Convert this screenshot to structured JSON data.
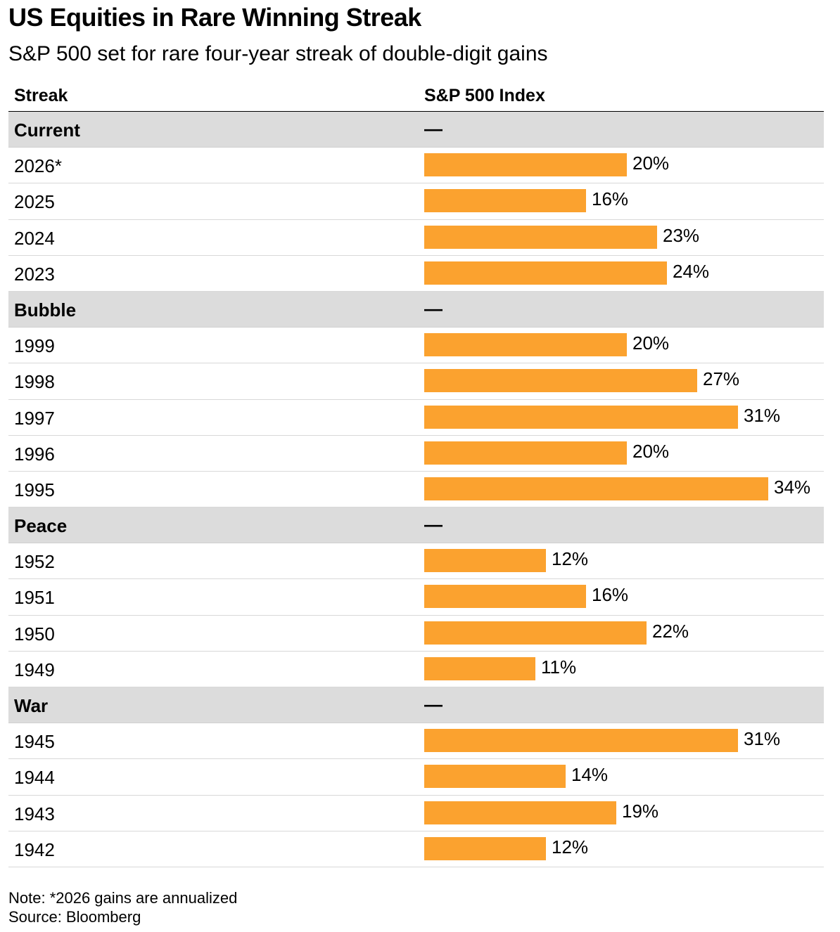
{
  "title": "US Equities in Rare Winning Streak",
  "subtitle": "S&P 500 set for rare four-year streak of double-digit gains",
  "columns": {
    "streak": "Streak",
    "index": "S&P 500 Index"
  },
  "note": "Note: *2026 gains are annualized",
  "source": "Source: Bloomberg",
  "colors": {
    "bar": "#fba22f",
    "group_bg": "#dcdcdc"
  },
  "chart_data": {
    "type": "bar",
    "orientation": "horizontal",
    "xlim": [
      0,
      34
    ],
    "groups": [
      {
        "name": "Current",
        "placeholder": "—",
        "rows": [
          {
            "year": "2026*",
            "value": 20,
            "label": "20%"
          },
          {
            "year": "2025",
            "value": 16,
            "label": "16%"
          },
          {
            "year": "2024",
            "value": 23,
            "label": "23%"
          },
          {
            "year": "2023",
            "value": 24,
            "label": "24%"
          }
        ]
      },
      {
        "name": "Bubble",
        "placeholder": "—",
        "rows": [
          {
            "year": "1999",
            "value": 20,
            "label": "20%"
          },
          {
            "year": "1998",
            "value": 27,
            "label": "27%"
          },
          {
            "year": "1997",
            "value": 31,
            "label": "31%"
          },
          {
            "year": "1996",
            "value": 20,
            "label": "20%"
          },
          {
            "year": "1995",
            "value": 34,
            "label": "34%"
          }
        ]
      },
      {
        "name": "Peace",
        "placeholder": "—",
        "rows": [
          {
            "year": "1952",
            "value": 12,
            "label": "12%"
          },
          {
            "year": "1951",
            "value": 16,
            "label": "16%"
          },
          {
            "year": "1950",
            "value": 22,
            "label": "22%"
          },
          {
            "year": "1949",
            "value": 11,
            "label": "11%"
          }
        ]
      },
      {
        "name": "War",
        "placeholder": "—",
        "rows": [
          {
            "year": "1945",
            "value": 31,
            "label": "31%"
          },
          {
            "year": "1944",
            "value": 14,
            "label": "14%"
          },
          {
            "year": "1943",
            "value": 19,
            "label": "19%"
          },
          {
            "year": "1942",
            "value": 12,
            "label": "12%"
          }
        ]
      }
    ]
  }
}
